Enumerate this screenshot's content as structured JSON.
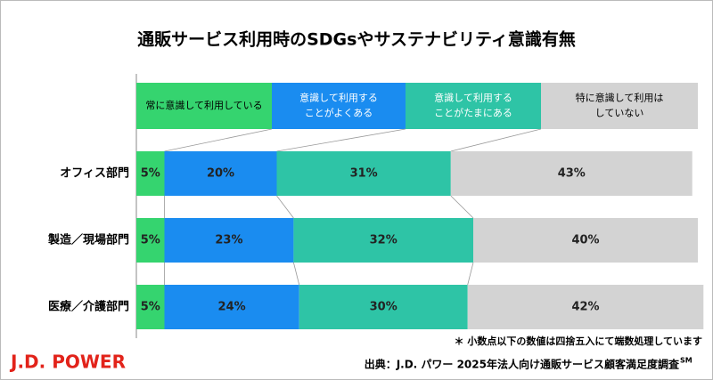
{
  "chart_data": {
    "type": "stacked-bar-horizontal",
    "title": "通販サービス利用時のSDGsやサステナビリティ意識有無",
    "categories": [
      "オフィス部門",
      "製造／現場部門",
      "医療／介護部門"
    ],
    "series": [
      {
        "name": "常に意識して利用している",
        "color": "#35d46f",
        "legend_text_color": "#000000",
        "values": [
          5,
          5,
          5
        ],
        "value_labels": [
          "5%",
          "5%",
          "5%"
        ]
      },
      {
        "name": "意識して利用する\nことがよくある",
        "color": "#1a8cf0",
        "legend_text_color": "#ffffff",
        "values": [
          20,
          23,
          24
        ],
        "value_labels": [
          "20%",
          "23%",
          "24%"
        ]
      },
      {
        "name": "意識して利用する\nことがたまにある",
        "color": "#2ec4a6",
        "legend_text_color": "#ffffff",
        "values": [
          31,
          32,
          30
        ],
        "value_labels": [
          "31%",
          "32%",
          "30%"
        ]
      },
      {
        "name": "特に意識して利用は\nしていない",
        "color": "#d3d3d3",
        "legend_text_color": "#000000",
        "values": [
          43,
          40,
          42
        ],
        "value_labels": [
          "43%",
          "40%",
          "42%"
        ]
      }
    ],
    "xlim": [
      0,
      100
    ],
    "footnote": "＊ 小数点以下の数値は四捨五入にて端数処理しています",
    "source": "出典：J.D. パワー 2025年法人向け通販サービス顧客満足度調査",
    "source_mark": "SM",
    "logo": "J.D. POWER"
  }
}
